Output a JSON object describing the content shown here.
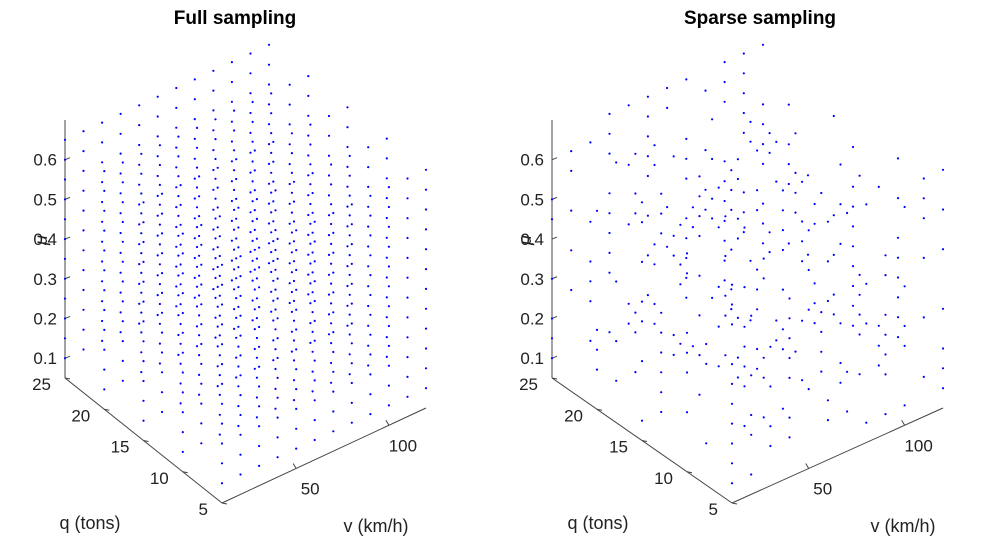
{
  "chart_data": [
    {
      "type": "scatter",
      "title": "Full sampling",
      "sampling": "full",
      "xlabel": "v (km/h)",
      "ylabel": "q (tons)",
      "zlabel": "μ",
      "xlim": [
        10,
        120
      ],
      "ylim": [
        5,
        25
      ],
      "zlim": [
        0.05,
        0.7
      ],
      "xticks": [
        50,
        100
      ],
      "yticks": [
        5,
        10,
        15,
        20,
        25
      ],
      "zticks": [
        0.1,
        0.2,
        0.3,
        0.4,
        0.5,
        0.6
      ],
      "grid": {
        "v_values": [
          10,
          20,
          30,
          40,
          50,
          60,
          70,
          80,
          90,
          100,
          110,
          120
        ],
        "q_values": [
          5,
          10,
          15,
          20,
          25
        ],
        "mu_values": [
          0.1,
          0.15,
          0.2,
          0.25,
          0.3,
          0.35,
          0.4,
          0.45,
          0.5,
          0.55,
          0.6,
          0.65
        ]
      },
      "marker_color": "#0000ff"
    },
    {
      "type": "scatter",
      "title": "Sparse sampling",
      "sampling": "sparse",
      "xlabel": "v (km/h)",
      "ylabel": "q (tons)",
      "zlabel": "μ",
      "xlim": [
        10,
        120
      ],
      "ylim": [
        5,
        25
      ],
      "zlim": [
        0.05,
        0.7
      ],
      "xticks": [
        50,
        100
      ],
      "yticks": [
        5,
        10,
        15,
        20,
        25
      ],
      "zticks": [
        0.1,
        0.2,
        0.3,
        0.4,
        0.5,
        0.6
      ],
      "grid": {
        "v_values": [
          10,
          20,
          30,
          40,
          50,
          60,
          70,
          80,
          90,
          100,
          110,
          120
        ],
        "q_values": [
          5,
          10,
          15,
          20,
          25
        ],
        "mu_values": [
          0.1,
          0.15,
          0.2,
          0.25,
          0.3,
          0.35,
          0.4,
          0.45,
          0.5,
          0.55,
          0.6,
          0.65
        ]
      },
      "marker_color": "#0000ff"
    }
  ]
}
